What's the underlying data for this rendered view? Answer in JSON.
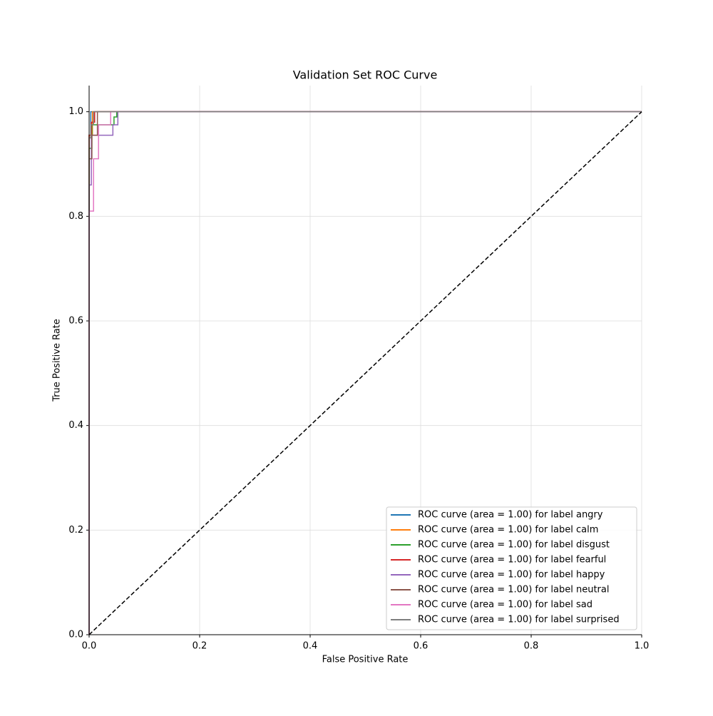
{
  "chart_data": {
    "type": "line",
    "title": "Validation Set ROC Curve",
    "x_label": "False Positive Rate",
    "y_label": "True Positive Rate",
    "xlim": [
      0,
      1
    ],
    "ylim": [
      0,
      1.05
    ],
    "xticks": [
      {
        "value": 0,
        "label": "0.0"
      },
      0.2,
      0.4,
      0.6,
      0.8,
      {
        "value": 1,
        "label": "1.0"
      }
    ],
    "yticks": [
      {
        "value": 0,
        "label": "0.0"
      },
      0.2,
      0.4,
      0.6,
      0.8,
      {
        "value": 1,
        "label": "1.0"
      }
    ],
    "grid": true,
    "legend": "lower right",
    "series": [
      {
        "name": "ROC curve (area = 1.00) for label angry",
        "color": "#1f77b4",
        "x": [
          0,
          0,
          0.003,
          0.003,
          1
        ],
        "y": [
          0,
          0.955,
          0.955,
          1,
          1
        ]
      },
      {
        "name": "ROC curve (area = 1.00) for label calm",
        "color": "#ff7f0e",
        "x": [
          0,
          0,
          0.006,
          0.006,
          1
        ],
        "y": [
          0,
          0.955,
          0.955,
          1,
          1
        ]
      },
      {
        "name": "ROC curve (area = 1.00) for label disgust",
        "color": "#2ca02c",
        "x": [
          0,
          0,
          0.005,
          0.005,
          0.045,
          0.045,
          0.05,
          0.05,
          1
        ],
        "y": [
          0,
          0.93,
          0.93,
          0.975,
          0.975,
          0.99,
          0.99,
          1,
          1
        ]
      },
      {
        "name": "ROC curve (area = 1.00) for label fearful",
        "color": "#d62728",
        "x": [
          0,
          0,
          0.004,
          0.004,
          0.01,
          0.01,
          1
        ],
        "y": [
          0,
          0.955,
          0.955,
          0.98,
          0.98,
          1,
          1
        ]
      },
      {
        "name": "ROC curve (area = 1.00) for label happy",
        "color": "#9467bd",
        "x": [
          0,
          0,
          0.004,
          0.004,
          0.043,
          0.043,
          0.052,
          0.052,
          1
        ],
        "y": [
          0,
          0.86,
          0.86,
          0.955,
          0.955,
          0.975,
          0.975,
          1,
          1
        ]
      },
      {
        "name": "ROC curve (area = 1.00) for label neutral",
        "color": "#8c564b",
        "x": [
          0,
          0,
          0.005,
          0.005,
          0.015,
          0.015,
          1
        ],
        "y": [
          0,
          0.91,
          0.91,
          0.955,
          0.955,
          1,
          1
        ]
      },
      {
        "name": "ROC curve (area = 1.00) for label sad",
        "color": "#e377c2",
        "x": [
          0,
          0,
          0.008,
          0.008,
          0.017,
          0.017,
          0.039,
          0.039,
          1
        ],
        "y": [
          0,
          0.81,
          0.81,
          0.91,
          0.91,
          0.975,
          0.975,
          1,
          1
        ]
      },
      {
        "name": "ROC curve (area = 1.00) for label surprised",
        "color": "#7f7f7f",
        "x": [
          0,
          0,
          0.003,
          0.003,
          0.008,
          0.008,
          1
        ],
        "y": [
          0,
          0.95,
          0.95,
          0.975,
          0.975,
          1,
          1
        ]
      }
    ],
    "reference_line": {
      "x": [
        0,
        1
      ],
      "y": [
        0,
        1
      ],
      "color": "#000000",
      "style": "dashed"
    }
  }
}
